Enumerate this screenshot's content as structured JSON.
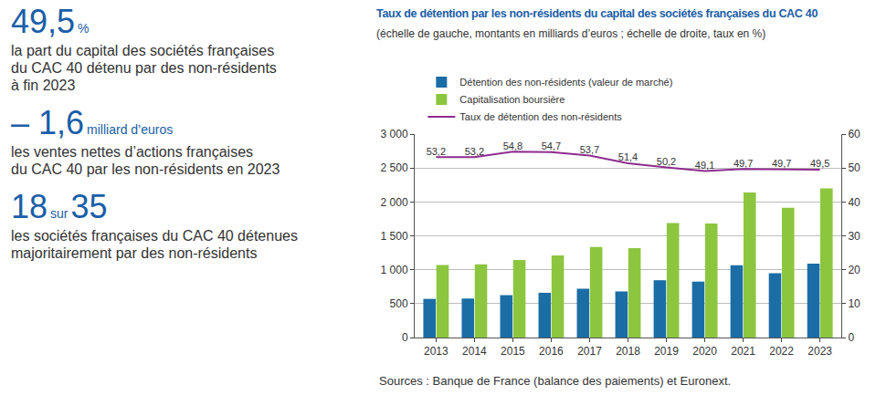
{
  "key_figures": [
    {
      "headline": [
        "49,5",
        "%"
      ],
      "text": [
        "la part du capital des sociétés françaises",
        "du CAC 40  détenu par des non-résidents",
        "à fin 2023"
      ]
    },
    {
      "headline": [
        "– 1,6",
        "milliard d’euros"
      ],
      "text": [
        "les ventes nettes d’actions françaises",
        "du CAC 40 par les non-résidents en 2023"
      ]
    },
    {
      "headline": [
        "18",
        "sur",
        "35"
      ],
      "text": [
        "les sociétés françaises du CAC 40 détenues",
        "majoritairement par des non-résidents"
      ]
    }
  ],
  "chart_data": {
    "type": "bar",
    "title": "Taux de détention par les non-résidents du capital des sociétés françaises du CAC 40",
    "subtitle": "(échelle de gauche, montants en milliards d’euros ; échelle de droite, taux en %)",
    "source": "Sources : Banque de France (balance des paiements) et Euronext.",
    "categories": [
      "2013",
      "2014",
      "2015",
      "2016",
      "2017",
      "2018",
      "2019",
      "2020",
      "2021",
      "2022",
      "2023"
    ],
    "series": [
      {
        "name": "Détention des non-résidents (valeur de marché)",
        "type": "bar",
        "color": "#1b6da6",
        "values": [
          570,
          575,
          625,
          660,
          720,
          680,
          845,
          825,
          1065,
          950,
          1090
        ]
      },
      {
        "name": "Capitalisation boursière",
        "type": "bar",
        "color": "#8cc63f",
        "values": [
          1070,
          1080,
          1145,
          1210,
          1335,
          1320,
          1690,
          1680,
          2140,
          1915,
          2200
        ]
      },
      {
        "name": "Taux de détention des non-résidents",
        "type": "line",
        "axis": "y2",
        "color": "#8e2d8e",
        "data_labels": true,
        "values": [
          53.2,
          53.2,
          54.8,
          54.7,
          53.7,
          51.4,
          50.2,
          49.1,
          49.7,
          49.7,
          49.5
        ],
        "value_labels": [
          "53,2",
          "53,2",
          "54,8",
          "54,7",
          "53,7",
          "51,4",
          "50,2",
          "49,1",
          "49,7",
          "49,7",
          "49,5"
        ]
      }
    ],
    "ylim": [
      0,
      3000
    ],
    "yticks": [
      0,
      500,
      {
        "value": 1000,
        "label": "1 000"
      },
      {
        "value": 1500,
        "label": "1 500"
      },
      {
        "value": 2000,
        "label": "2 000"
      },
      {
        "value": 2500,
        "label": "2 500"
      },
      {
        "value": 3000,
        "label": "3 000"
      }
    ],
    "y2lim": [
      0,
      60
    ],
    "y2ticks": [
      0,
      10,
      20,
      30,
      40,
      50,
      60
    ],
    "grid": true
  }
}
